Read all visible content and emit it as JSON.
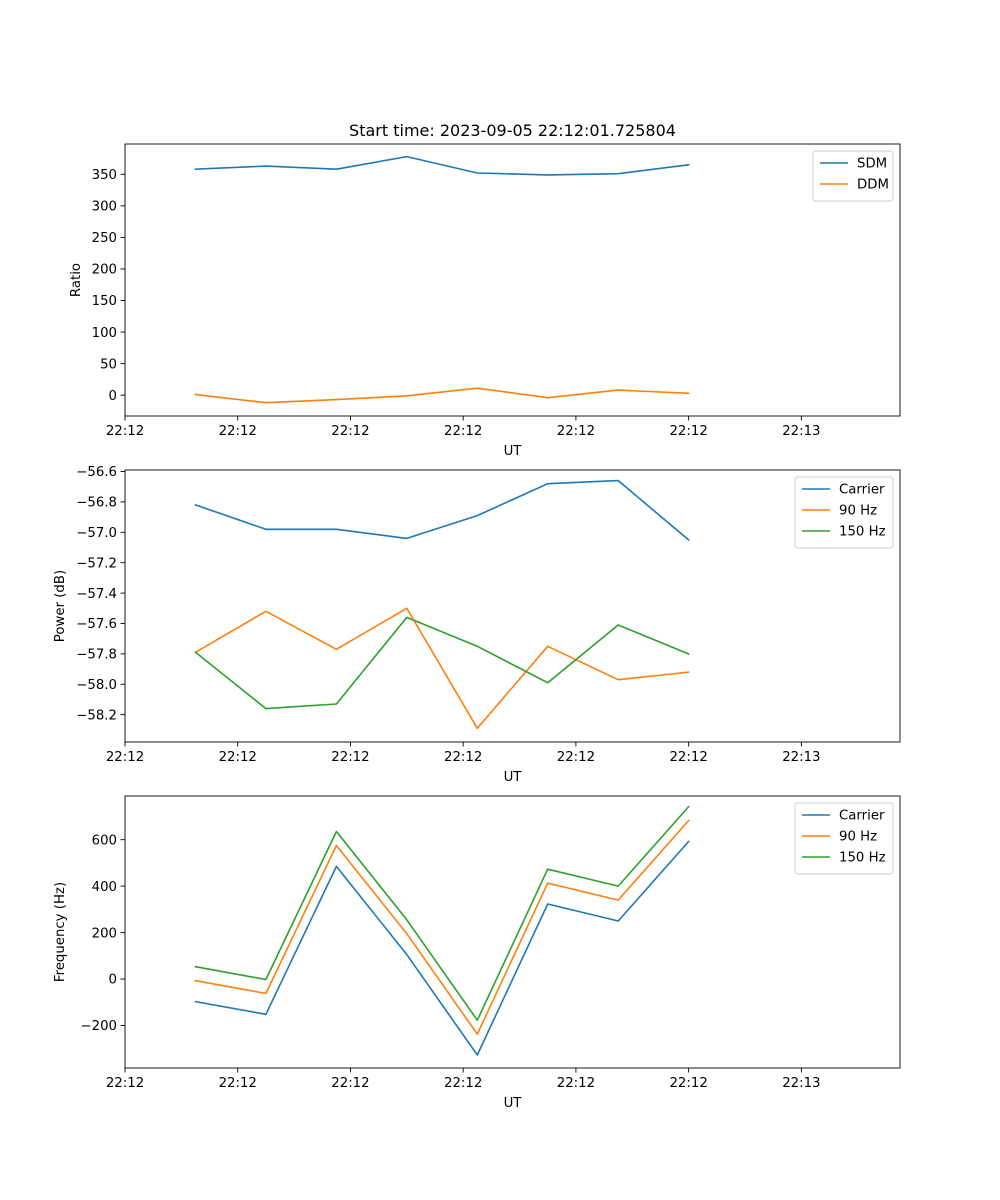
{
  "chart_data": [
    {
      "type": "line",
      "title": "Start time: 2023-09-05 22:12:01.725804",
      "xlabel": "UT",
      "ylabel": "Ratio",
      "xlim": [
        0,
        11
      ],
      "ylim": [
        -33,
        398
      ],
      "x": [
        1,
        2,
        3,
        4,
        5,
        6,
        7,
        8
      ],
      "xticks": [
        0,
        1.6,
        3.2,
        4.8,
        6.4,
        8.0,
        9.6
      ],
      "xtick_labels": [
        "22:12",
        "22:12",
        "22:12",
        "22:12",
        "22:12",
        "22:12",
        "22:13"
      ],
      "yticks": [
        0,
        50,
        100,
        150,
        200,
        250,
        300,
        350
      ],
      "ytick_labels": [
        "0",
        "50",
        "100",
        "150",
        "200",
        "250",
        "300",
        "350"
      ],
      "legend_position": "top-right",
      "series": [
        {
          "name": "SDM",
          "color": "#1f77b4",
          "values": [
            358,
            363,
            358,
            378,
            352,
            349,
            351,
            365
          ]
        },
        {
          "name": "DDM",
          "color": "#ff7f0e",
          "values": [
            1,
            -12,
            -7,
            -1,
            11,
            -4,
            8,
            3
          ]
        }
      ]
    },
    {
      "type": "line",
      "title": "",
      "xlabel": "UT",
      "ylabel": "Power (dB)",
      "xlim": [
        0,
        11
      ],
      "ylim": [
        -58.38,
        -56.59
      ],
      "x": [
        1,
        2,
        3,
        4,
        5,
        6,
        7,
        8
      ],
      "xticks": [
        0,
        1.6,
        3.2,
        4.8,
        6.4,
        8.0,
        9.6
      ],
      "xtick_labels": [
        "22:12",
        "22:12",
        "22:12",
        "22:12",
        "22:12",
        "22:12",
        "22:13"
      ],
      "yticks": [
        -58.2,
        -58.0,
        -57.8,
        -57.6,
        -57.4,
        -57.2,
        -57.0,
        -56.8,
        -56.6
      ],
      "ytick_labels": [
        "−58.2",
        "−58.0",
        "−57.8",
        "−57.6",
        "−57.4",
        "−57.2",
        "−57.0",
        "−56.8",
        "−56.6"
      ],
      "legend_position": "top-right",
      "series": [
        {
          "name": "Carrier",
          "color": "#1f77b4",
          "values": [
            -56.82,
            -56.98,
            -56.98,
            -57.04,
            -56.89,
            -56.68,
            -56.66,
            -57.05
          ]
        },
        {
          "name": "90 Hz",
          "color": "#ff7f0e",
          "values": [
            -57.79,
            -57.52,
            -57.77,
            -57.5,
            -58.29,
            -57.75,
            -57.97,
            -57.92
          ]
        },
        {
          "name": "150 Hz",
          "color": "#2ca02c",
          "values": [
            -57.79,
            -58.16,
            -58.13,
            -57.56,
            -57.75,
            -57.99,
            -57.61,
            -57.8
          ]
        }
      ]
    },
    {
      "type": "line",
      "title": "",
      "xlabel": "UT",
      "ylabel": "Frequency (Hz)",
      "xlim": [
        0,
        11
      ],
      "ylim": [
        -383,
        788
      ],
      "x": [
        1,
        2,
        3,
        4,
        5,
        6,
        7,
        8
      ],
      "xticks": [
        0,
        1.6,
        3.2,
        4.8,
        6.4,
        8.0,
        9.6
      ],
      "xtick_labels": [
        "22:12",
        "22:12",
        "22:12",
        "22:12",
        "22:12",
        "22:12",
        "22:13"
      ],
      "yticks": [
        -200,
        0,
        200,
        400,
        600
      ],
      "ytick_labels": [
        "−200",
        "0",
        "200",
        "400",
        "600"
      ],
      "legend_position": "top-right",
      "series": [
        {
          "name": "Carrier",
          "color": "#1f77b4",
          "values": [
            -97,
            -152,
            485,
            105,
            -327,
            323,
            250,
            592
          ]
        },
        {
          "name": "90 Hz",
          "color": "#ff7f0e",
          "values": [
            -7,
            -62,
            575,
            195,
            -237,
            413,
            340,
            682
          ]
        },
        {
          "name": "150 Hz",
          "color": "#2ca02c",
          "values": [
            53,
            -2,
            635,
            255,
            -177,
            473,
            400,
            742
          ]
        }
      ]
    }
  ]
}
